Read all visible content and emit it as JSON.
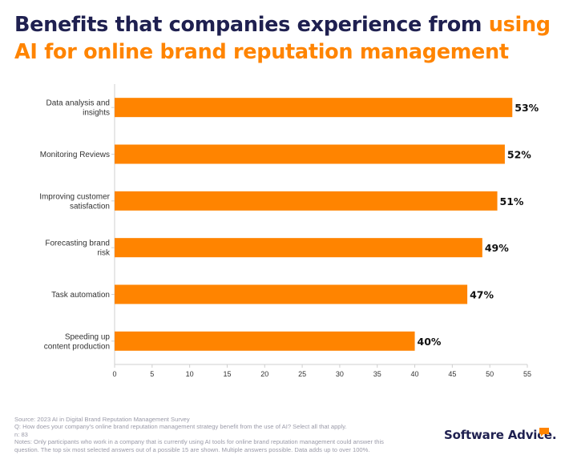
{
  "title": {
    "part1": "Benefits that companies experience from ",
    "part2": "using AI for online brand reputation management"
  },
  "colors": {
    "bar": "#ff8400",
    "title": "#1f2050",
    "accent": "#ff8400"
  },
  "chart_data": {
    "type": "bar",
    "orientation": "horizontal",
    "categories": [
      [
        "Data analysis and",
        "insights"
      ],
      [
        "Monitoring Reviews"
      ],
      [
        "Improving customer",
        "satisfaction"
      ],
      [
        "Forecasting brand",
        "risk"
      ],
      [
        "Task automation"
      ],
      [
        "Speeding up",
        "content production"
      ]
    ],
    "values": [
      53,
      52,
      51,
      49,
      47,
      40
    ],
    "value_labels": [
      "53%",
      "52%",
      "51%",
      "49%",
      "47%",
      "40%"
    ],
    "xlim": [
      0,
      55
    ],
    "xticks": [
      0,
      5,
      10,
      15,
      20,
      25,
      30,
      35,
      40,
      45,
      50,
      55
    ],
    "grid": false
  },
  "footer": {
    "source": "Source: 2023 AI in Digital Brand Reputation Management Survey",
    "question": "Q: How does your company's online brand reputation management strategy benefit from the use of AI? Select all that apply.",
    "n": "n: 83",
    "notes": "Notes: Only participants who work in a company that is currently using AI tools for online brand reputation management could answer this question. The top six most selected answers out of a possible 15 are shown. Multiple answers possible. Data adds up to over 100%."
  },
  "logo": {
    "text": "Software Advice.",
    "icon": "speech-bubble-icon"
  }
}
